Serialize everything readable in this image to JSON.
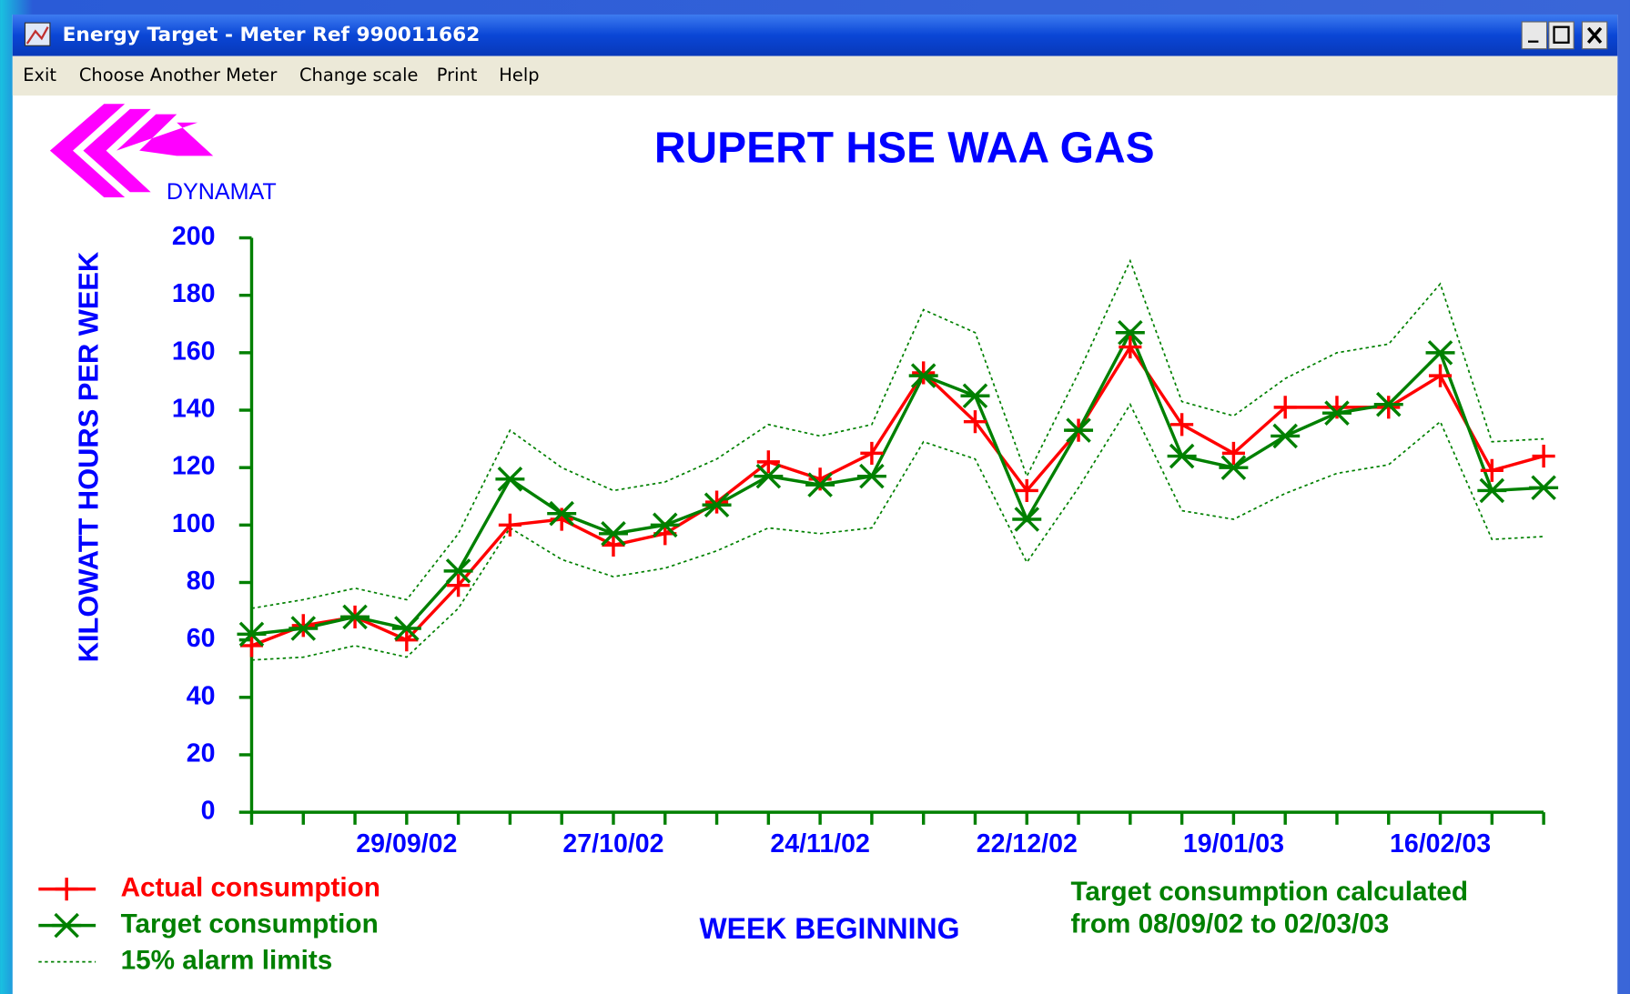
{
  "window": {
    "title": "Energy Target - Meter Ref 990011662"
  },
  "menu": [
    "Exit",
    "Choose Another Meter",
    "Change scale",
    "Print",
    "Help"
  ],
  "logo": "DYNAMAT",
  "chart_data": {
    "type": "line",
    "title": "RUPERT HSE WAA GAS",
    "y_label": "KILOWATT HOURS PER WEEK",
    "x_label": "WEEK BEGINNING",
    "note": [
      "Target consumption calculated",
      "from 08/09/02 to 02/03/03"
    ],
    "categories": [
      null,
      null,
      null,
      "29/09/02",
      null,
      null,
      null,
      "27/10/02",
      null,
      null,
      null,
      "24/11/02",
      null,
      null,
      null,
      "22/12/02",
      null,
      null,
      null,
      "19/01/03",
      null,
      null,
      null,
      "16/02/03",
      null,
      null
    ],
    "ylim": [
      0,
      200
    ],
    "yticks": [
      0,
      20,
      40,
      60,
      80,
      100,
      120,
      140,
      160,
      180,
      200
    ],
    "series": [
      {
        "name": "Actual consumption",
        "color": "#ff0000",
        "marker": "+",
        "style": "solid",
        "values": [
          58,
          65,
          68,
          60,
          79,
          100,
          102,
          93,
          97,
          108,
          122,
          116,
          125,
          153,
          136,
          112,
          133,
          162,
          135,
          125,
          141,
          141,
          141,
          152,
          119,
          124
        ]
      },
      {
        "name": "Target consumption",
        "color": "#008000",
        "marker": "x",
        "style": "solid",
        "values": [
          62,
          64,
          68,
          64,
          84,
          116,
          104,
          97,
          100,
          107,
          117,
          114,
          117,
          152,
          145,
          102,
          133,
          167,
          124,
          120,
          131,
          139,
          142,
          160,
          112,
          113
        ]
      },
      {
        "name": "15% alarm limits",
        "color": "#008000",
        "style": "dotted",
        "values": [
          71,
          74,
          78,
          74,
          97,
          133,
          120,
          112,
          115,
          123,
          135,
          131,
          135,
          175,
          167,
          117,
          153,
          192,
          143,
          138,
          151,
          160,
          163,
          184,
          129,
          130
        ]
      },
      {
        "color": "#008000",
        "style": "dotted",
        "values": [
          53,
          54,
          58,
          54,
          71,
          99,
          88,
          82,
          85,
          91,
          99,
          97,
          99,
          129,
          123,
          87,
          113,
          142,
          105,
          102,
          111,
          118,
          121,
          136,
          95,
          96
        ]
      }
    ]
  }
}
